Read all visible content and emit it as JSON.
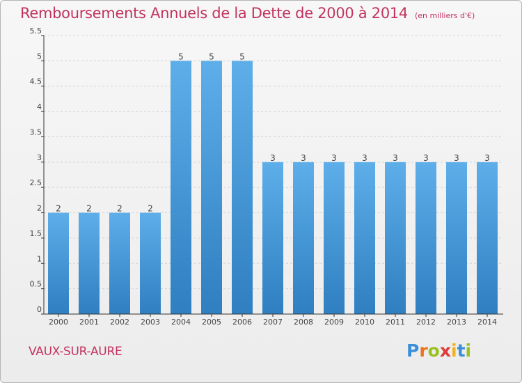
{
  "header": {
    "title": "Remboursements Annuels de la Dette de 2000 à 2014",
    "subtitle": "(en milliers d'€)"
  },
  "footer": {
    "commune": "VAUX-SUR-AURE",
    "logo_text": "Proxiti",
    "logo_letters": [
      {
        "ch": "P",
        "color": "#3a8fd8"
      },
      {
        "ch": "r",
        "color": "#e8741c"
      },
      {
        "ch": "o",
        "color": "#9ac21f"
      },
      {
        "ch": "x",
        "color": "#e03a3a"
      },
      {
        "ch": "i",
        "color": "#f2b01e"
      },
      {
        "ch": "t",
        "color": "#3a8fd8"
      },
      {
        "ch": "i",
        "color": "#9ac21f"
      }
    ]
  },
  "chart_data": {
    "type": "bar",
    "categories": [
      "2000",
      "2001",
      "2002",
      "2003",
      "2004",
      "2005",
      "2006",
      "2007",
      "2008",
      "2009",
      "2010",
      "2011",
      "2012",
      "2013",
      "2014"
    ],
    "values": [
      2,
      2,
      2,
      2,
      5,
      5,
      5,
      3,
      3,
      3,
      3,
      3,
      3,
      3,
      3
    ],
    "data_labels": [
      "2",
      "2",
      "2",
      "2",
      "5",
      "5",
      "5",
      "3",
      "3",
      "3",
      "3",
      "3",
      "3",
      "3",
      "3"
    ],
    "y_ticks": [
      {
        "value": 0,
        "label": "0"
      },
      {
        "value": 0.5,
        "label": "0.5"
      },
      {
        "value": 1,
        "label": "1"
      },
      {
        "value": 1.5,
        "label": "1.5"
      },
      {
        "value": 2,
        "label": "2"
      },
      {
        "value": 2.5,
        "label": "2.5"
      },
      {
        "value": 3,
        "label": "3"
      },
      {
        "value": 3.5,
        "label": "3.5"
      },
      {
        "value": 4,
        "label": "4"
      },
      {
        "value": 4.5,
        "label": "4.5"
      },
      {
        "value": 5,
        "label": "5"
      },
      {
        "value": 5.5,
        "label": "5.5"
      }
    ],
    "ylim": [
      0,
      5.5
    ],
    "grid": true,
    "colors": {
      "bar_light": "#5daee9",
      "bar_dark": "#2f7fc1",
      "grid": "#d2d2d2",
      "axis": "#333333",
      "text": "#444444"
    }
  }
}
